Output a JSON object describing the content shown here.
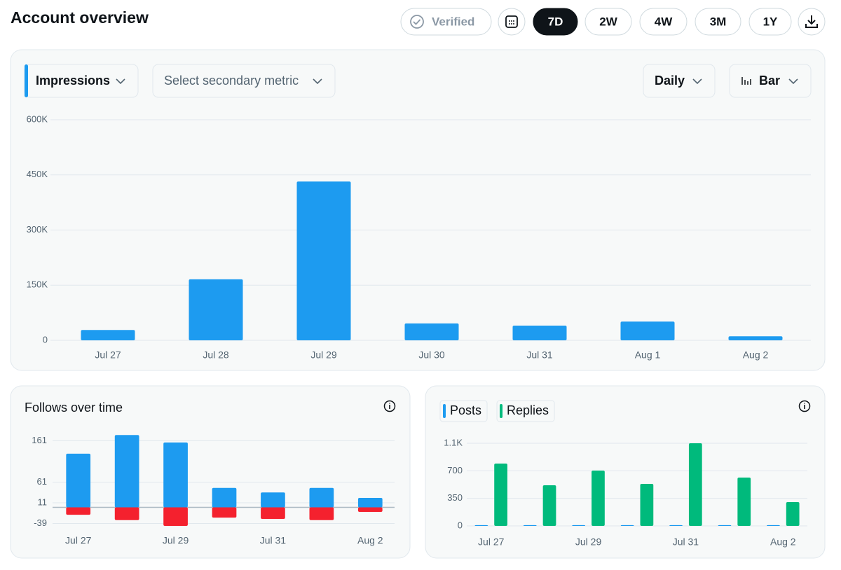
{
  "header": {
    "title": "Account overview",
    "verified": "Verified",
    "ranges": [
      "7D",
      "2W",
      "4W",
      "3M",
      "1Y"
    ],
    "selected_range": "7D"
  },
  "controls": {
    "primary_metric": "Impressions",
    "secondary_metric": "Select secondary metric",
    "interval": "Daily",
    "chart_style": "Bar"
  },
  "chart_data": [
    {
      "type": "bar",
      "categories": [
        "Jul 27",
        "Jul 28",
        "Jul 29",
        "Jul 30",
        "Jul 31",
        "Aug 1",
        "Aug 2"
      ],
      "values": [
        28000,
        166000,
        432000,
        46000,
        40000,
        51000,
        11000
      ],
      "color": "#1d9bf0",
      "ylim": [
        0,
        600000
      ],
      "yticks": [
        0,
        {
          "value": 150000,
          "label": "150K"
        },
        {
          "value": 300000,
          "label": "300K"
        },
        {
          "value": 450000,
          "label": "450K"
        },
        {
          "value": 600000,
          "label": "600K"
        }
      ],
      "grid": true
    },
    {
      "type": "bar",
      "title": "Follows over time",
      "bar_mode": "overlay",
      "categories": [
        "Jul 27",
        null,
        "Jul 29",
        null,
        "Jul 31",
        null,
        "Aug 2"
      ],
      "series": [
        {
          "color": "#1d9bf0",
          "values": [
            130,
            175,
            157,
            47,
            36,
            47,
            23
          ]
        },
        {
          "color": "#f4212e",
          "values": [
            -18,
            -31,
            -45,
            -25,
            -28,
            -31,
            -11
          ]
        }
      ],
      "ylim": [
        -45,
        175
      ],
      "yticks": [
        -39,
        11,
        61,
        161
      ],
      "grid": true
    },
    {
      "type": "bar",
      "bar_mode": "group",
      "legend": "top-left",
      "categories": [
        "Jul 27",
        null,
        "Jul 29",
        null,
        "Jul 31",
        null,
        "Aug 2"
      ],
      "series": [
        {
          "name": "Posts",
          "color": "#1d9bf0",
          "values": [
            10,
            10,
            10,
            10,
            10,
            10,
            10
          ]
        },
        {
          "name": "Replies",
          "color": "#00ba7c",
          "values": [
            792,
            516,
            703,
            534,
            1050,
            614,
            302
          ]
        }
      ],
      "ylim": [
        0,
        1050
      ],
      "yticks": [
        0,
        350,
        700,
        {
          "value": 1050,
          "label": "1.1K"
        }
      ],
      "grid": true
    }
  ]
}
